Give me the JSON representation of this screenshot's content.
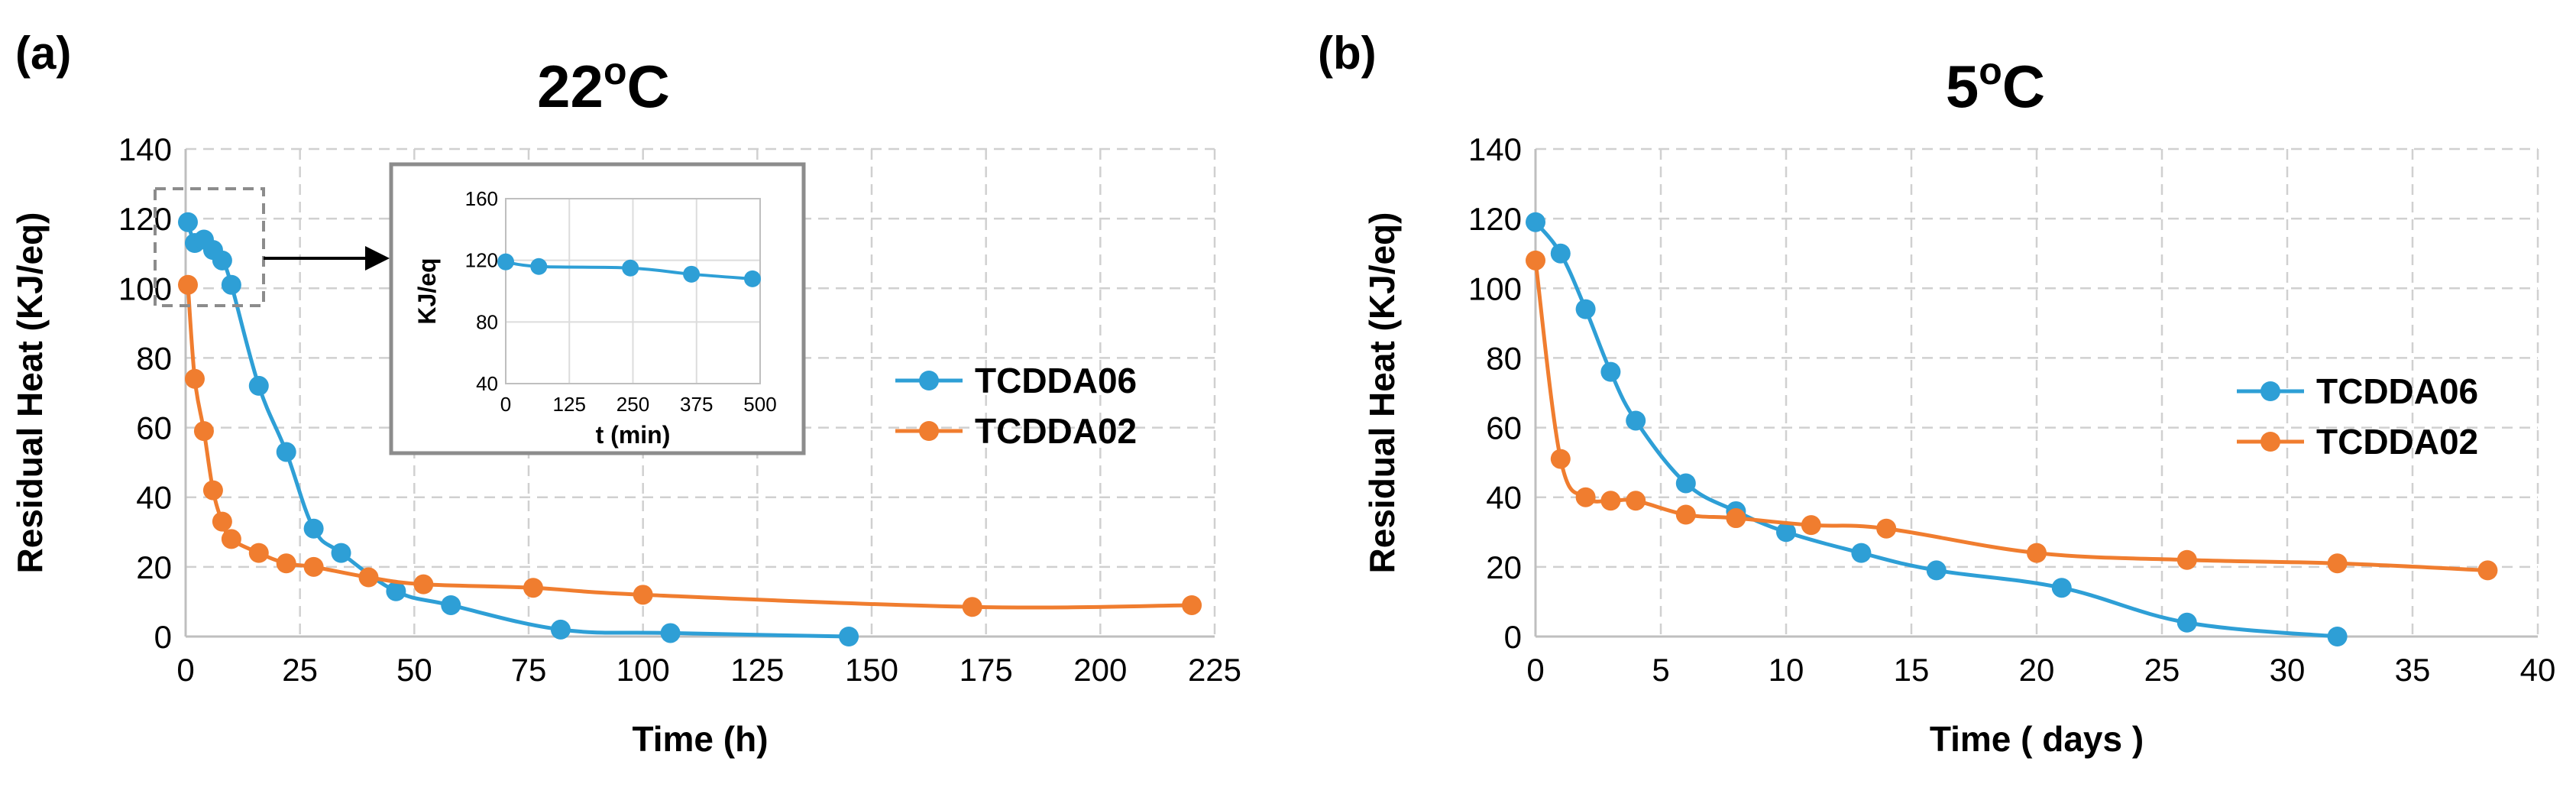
{
  "chart_data": [
    {
      "type": "line",
      "panel_label": "(a)",
      "title": "22",
      "title_sup": "o",
      "title_suffix": "C",
      "xlabel": "Time (h)",
      "ylabel": "Residual Heat (KJ/eq)",
      "xlim": [
        0,
        225
      ],
      "ylim": [
        0,
        140
      ],
      "xticks": [
        0,
        25,
        50,
        75,
        100,
        125,
        150,
        175,
        200,
        225
      ],
      "yticks": [
        0,
        20,
        40,
        60,
        80,
        100,
        120,
        140
      ],
      "grid": true,
      "legend_position": "right",
      "series": [
        {
          "name": "TCDDA06",
          "color": "#2E9FD6",
          "x": [
            0.5,
            2,
            4,
            6,
            8,
            10,
            16,
            22,
            28,
            34,
            46,
            58,
            82,
            106,
            145
          ],
          "y": [
            119,
            113,
            114,
            111,
            108,
            101,
            72,
            53,
            31,
            24,
            13,
            9,
            2,
            1,
            0
          ]
        },
        {
          "name": "TCDDA02",
          "color": "#F07D2F",
          "x": [
            0.5,
            2,
            4,
            6,
            8,
            10,
            16,
            22,
            28,
            40,
            52,
            76,
            100,
            172,
            220
          ],
          "y": [
            101,
            74,
            59,
            42,
            33,
            28,
            24,
            21,
            20,
            17,
            15,
            14,
            12,
            8.5,
            9
          ]
        }
      ],
      "inset": {
        "xlabel": "t (min)",
        "ylabel": "KJ/eq",
        "xlim": [
          0,
          500
        ],
        "ylim": [
          40,
          160
        ],
        "xticks": [
          0,
          125,
          250,
          375,
          500
        ],
        "yticks": [
          40,
          80,
          120,
          160
        ],
        "series": [
          {
            "name": "TCDDA06",
            "color": "#2E9FD6",
            "x": [
              0,
              65,
              245,
              365,
              485
            ],
            "y": [
              119,
              116,
              115,
              111,
              108
            ]
          }
        ]
      }
    },
    {
      "type": "line",
      "panel_label": "(b)",
      "title": "5",
      "title_sup": "o",
      "title_suffix": "C",
      "xlabel": "Time ( days )",
      "ylabel": "Residual Heat (KJ/eq)",
      "xlim": [
        0,
        40
      ],
      "ylim": [
        0,
        140
      ],
      "xticks": [
        0,
        5,
        10,
        15,
        20,
        25,
        30,
        35,
        40
      ],
      "yticks": [
        0,
        20,
        40,
        60,
        80,
        100,
        120,
        140
      ],
      "grid": true,
      "legend_position": "right",
      "series": [
        {
          "name": "TCDDA06",
          "color": "#2E9FD6",
          "x": [
            0,
            1,
            2,
            3,
            4,
            6,
            8,
            10,
            13,
            16,
            21,
            26,
            32
          ],
          "y": [
            119,
            110,
            94,
            76,
            62,
            44,
            36,
            30,
            24,
            19,
            14,
            4,
            0
          ]
        },
        {
          "name": "TCDDA02",
          "color": "#F07D2F",
          "x": [
            0,
            1,
            2,
            3,
            4,
            6,
            8,
            11,
            14,
            20,
            26,
            32,
            38
          ],
          "y": [
            108,
            51,
            40,
            39,
            39,
            35,
            34,
            32,
            31,
            24,
            22,
            21,
            19
          ]
        }
      ]
    }
  ]
}
